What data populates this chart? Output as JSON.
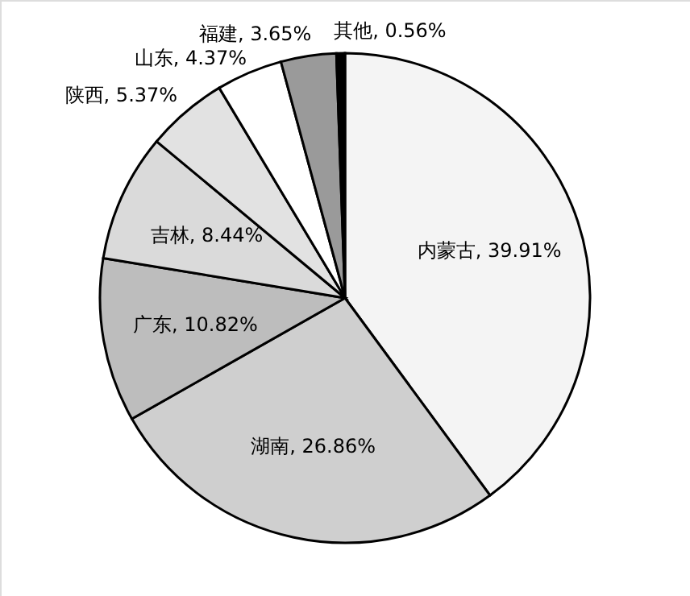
{
  "chart_data": {
    "type": "pie",
    "categories": [
      "内蒙古",
      "湖南",
      "广东",
      "吉林",
      "陕西",
      "山东",
      "福建",
      "其他"
    ],
    "values": [
      39.91,
      26.86,
      10.82,
      8.44,
      5.37,
      4.37,
      3.65,
      0.56
    ],
    "colors": [
      "#f4f4f4",
      "#cfcfcf",
      "#bdbdbd",
      "#dadada",
      "#e2e2e2",
      "#ffffff",
      "#9a9a9a",
      "#000000"
    ],
    "value_labels": [
      "39.91%",
      "26.86%",
      "10.82%",
      "8.44%",
      "5.37%",
      "4.37%",
      "3.65%",
      "0.56%"
    ]
  }
}
